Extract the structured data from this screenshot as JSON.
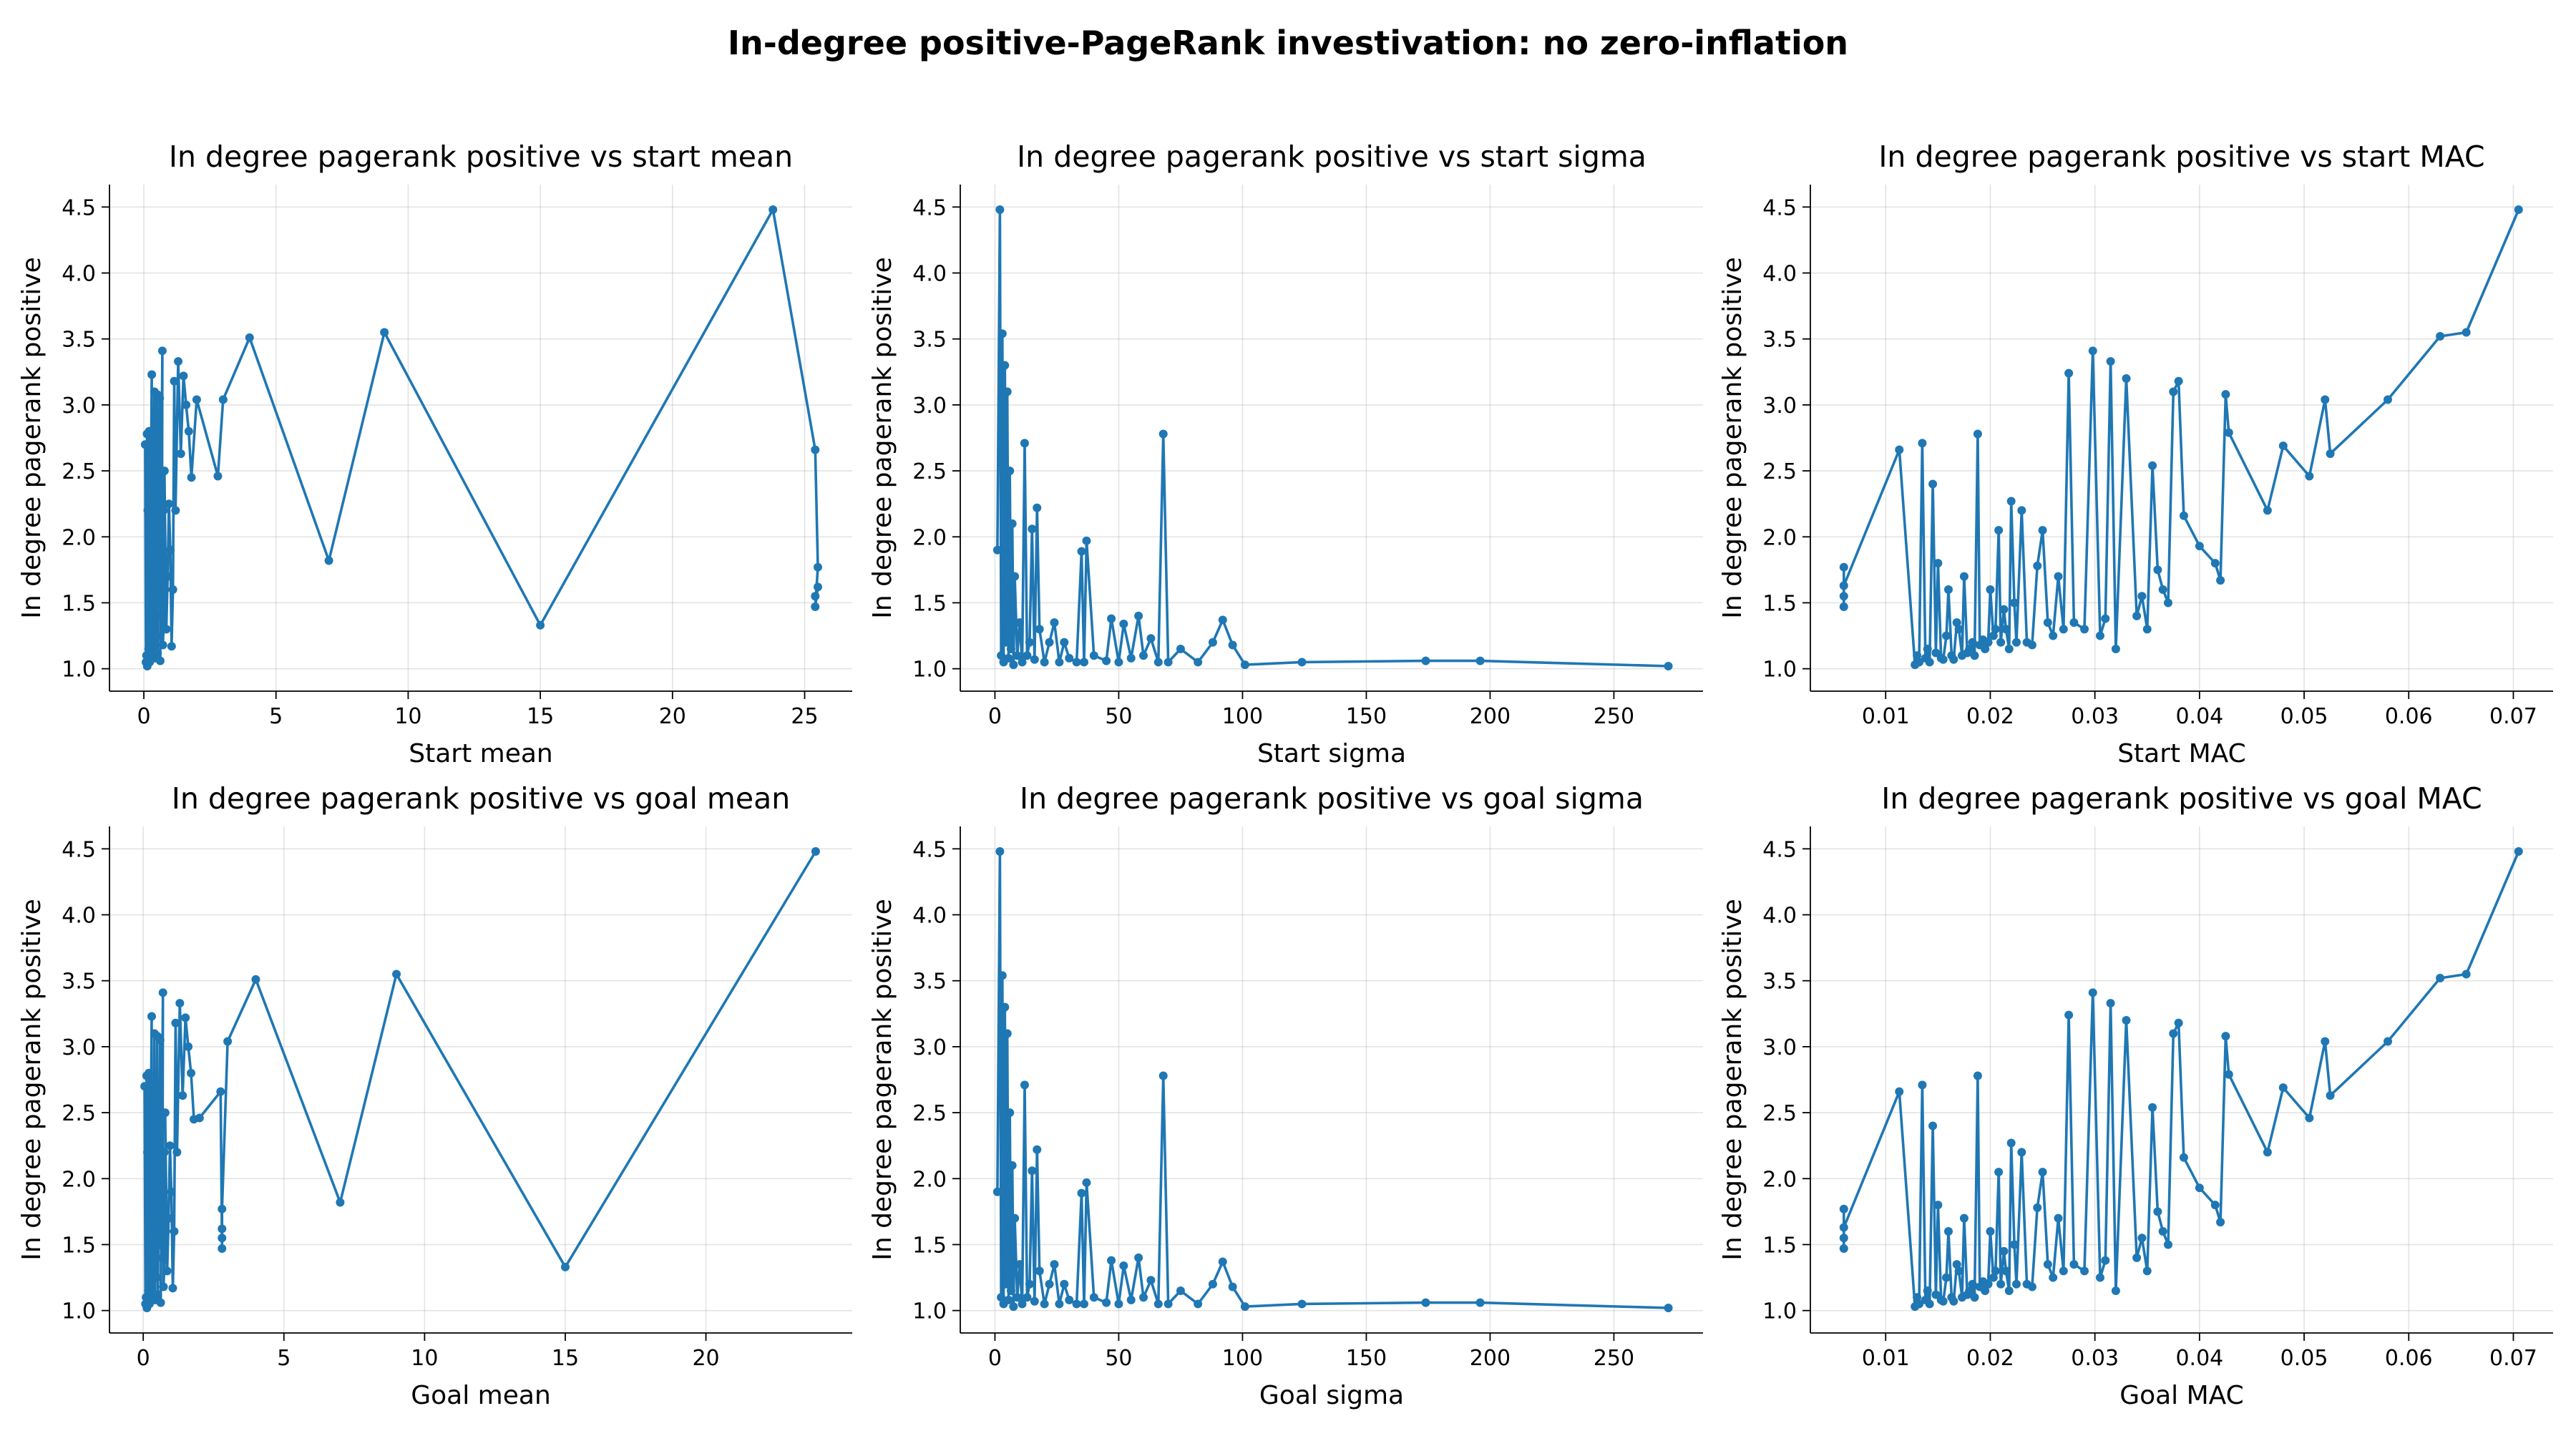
{
  "figure": {
    "suptitle": "In-degree positive-PageRank investivation: no zero-inflation",
    "line_color": "#1f77b4"
  },
  "chart_data": [
    {
      "type": "line",
      "title": "In degree pagerank positive vs start mean",
      "xlabel": "Start mean",
      "ylabel": "In degree pagerank positive",
      "xlim": [
        -1.3,
        26.8
      ],
      "ylim": [
        0.83,
        4.67
      ],
      "xticks": [
        0,
        5,
        10,
        15,
        20,
        25
      ],
      "xtick_labels": [
        "0",
        "5",
        "10",
        "15",
        "20",
        "25"
      ],
      "yticks": [
        1.0,
        1.5,
        2.0,
        2.5,
        3.0,
        3.5,
        4.0,
        4.5
      ],
      "ytick_labels": [
        "1.0",
        "1.5",
        "2.0",
        "2.5",
        "3.0",
        "3.5",
        "4.0",
        "4.5"
      ],
      "grid": true,
      "x": [
        0.05,
        0.08,
        0.12,
        0.1,
        0.15,
        0.13,
        0.2,
        0.18,
        0.25,
        0.22,
        0.3,
        0.28,
        0.35,
        0.33,
        0.4,
        0.38,
        0.45,
        0.42,
        0.5,
        0.48,
        0.55,
        0.52,
        0.6,
        0.58,
        0.65,
        0.62,
        0.7,
        0.68,
        0.75,
        0.72,
        0.8,
        0.78,
        0.85,
        0.9,
        0.95,
        1.0,
        1.05,
        1.1,
        1.15,
        1.2,
        1.3,
        1.4,
        1.5,
        1.6,
        1.7,
        1.8,
        2.0,
        2.8,
        3.0,
        4.0,
        7.0,
        9.1,
        15.0,
        23.8,
        25.4,
        25.5,
        25.4,
        25.5,
        25.4
      ],
      "y": [
        2.7,
        1.05,
        2.78,
        1.1,
        2.2,
        1.02,
        2.8,
        1.15,
        1.9,
        1.05,
        3.23,
        1.2,
        2.6,
        1.1,
        3.1,
        1.3,
        2.1,
        1.08,
        3.08,
        1.25,
        1.95,
        1.12,
        3.05,
        1.5,
        2.0,
        1.06,
        3.41,
        1.4,
        2.2,
        1.18,
        1.6,
        2.5,
        1.3,
        1.7,
        2.25,
        1.9,
        1.17,
        1.6,
        3.18,
        2.2,
        3.33,
        2.63,
        3.22,
        3.0,
        2.8,
        2.45,
        3.04,
        2.46,
        3.04,
        3.51,
        1.82,
        3.55,
        1.33,
        4.48,
        2.66,
        1.77,
        1.47,
        1.62,
        1.55
      ]
    },
    {
      "type": "line",
      "title": "In degree pagerank positive vs start sigma",
      "xlabel": "Start sigma",
      "ylabel": "In degree pagerank positive",
      "xlim": [
        -14,
        286
      ],
      "ylim": [
        0.83,
        4.67
      ],
      "xticks": [
        0,
        50,
        100,
        150,
        200,
        250
      ],
      "xtick_labels": [
        "0",
        "50",
        "100",
        "150",
        "200",
        "250"
      ],
      "yticks": [
        1.0,
        1.5,
        2.0,
        2.5,
        3.0,
        3.5,
        4.0,
        4.5
      ],
      "ytick_labels": [
        "1.0",
        "1.5",
        "2.0",
        "2.5",
        "3.0",
        "3.5",
        "4.0",
        "4.5"
      ],
      "grid": true,
      "x": [
        1,
        2,
        2.5,
        3,
        3.5,
        4,
        4.5,
        5,
        5.5,
        6,
        6.5,
        7,
        7.5,
        8,
        9,
        10,
        11,
        12,
        13,
        14,
        15,
        16,
        17,
        18,
        20,
        22,
        24,
        26,
        28,
        30,
        33,
        35,
        36,
        37,
        40,
        45,
        47,
        50,
        52,
        55,
        58,
        60,
        63,
        66,
        68,
        70,
        75,
        82,
        88,
        92,
        96,
        101,
        124,
        174,
        196,
        272
      ],
      "y": [
        1.9,
        4.48,
        1.1,
        3.54,
        1.05,
        3.3,
        1.2,
        3.1,
        1.08,
        2.5,
        1.15,
        2.1,
        1.03,
        1.7,
        1.1,
        1.35,
        1.05,
        2.71,
        1.1,
        1.2,
        2.06,
        1.07,
        2.22,
        1.3,
        1.05,
        1.2,
        1.35,
        1.05,
        1.2,
        1.08,
        1.05,
        1.89,
        1.05,
        1.97,
        1.1,
        1.06,
        1.38,
        1.05,
        1.34,
        1.08,
        1.4,
        1.1,
        1.23,
        1.05,
        2.78,
        1.05,
        1.15,
        1.05,
        1.2,
        1.37,
        1.18,
        1.03,
        1.05,
        1.06,
        1.06,
        1.02
      ]
    },
    {
      "type": "line",
      "title": "In degree pagerank positive vs start MAC",
      "xlabel": "Start MAC",
      "ylabel": "In degree pagerank positive",
      "xlim": [
        0.0028,
        0.0738
      ],
      "ylim": [
        0.83,
        4.67
      ],
      "xticks": [
        0.01,
        0.02,
        0.03,
        0.04,
        0.05,
        0.06,
        0.07
      ],
      "xtick_labels": [
        "0.01",
        "0.02",
        "0.03",
        "0.04",
        "0.05",
        "0.06",
        "0.07"
      ],
      "yticks": [
        1.0,
        1.5,
        2.0,
        2.5,
        3.0,
        3.5,
        4.0,
        4.5
      ],
      "ytick_labels": [
        "1.0",
        "1.5",
        "2.0",
        "2.5",
        "3.0",
        "3.5",
        "4.0",
        "4.5"
      ],
      "grid": true,
      "x": [
        0.006,
        0.006,
        0.006,
        0.006,
        0.0113,
        0.0128,
        0.013,
        0.0132,
        0.0135,
        0.0138,
        0.014,
        0.0142,
        0.0145,
        0.0148,
        0.015,
        0.0153,
        0.0155,
        0.0158,
        0.016,
        0.0163,
        0.0165,
        0.0168,
        0.017,
        0.0173,
        0.0175,
        0.0178,
        0.018,
        0.0183,
        0.0185,
        0.0188,
        0.019,
        0.0193,
        0.0195,
        0.0198,
        0.02,
        0.0203,
        0.0205,
        0.0208,
        0.021,
        0.0213,
        0.0215,
        0.0218,
        0.022,
        0.0223,
        0.0225,
        0.023,
        0.0235,
        0.024,
        0.0245,
        0.025,
        0.0255,
        0.026,
        0.0265,
        0.027,
        0.0275,
        0.028,
        0.029,
        0.0298,
        0.0305,
        0.031,
        0.0315,
        0.032,
        0.033,
        0.034,
        0.0345,
        0.035,
        0.0355,
        0.036,
        0.0365,
        0.037,
        0.0375,
        0.038,
        0.0385,
        0.04,
        0.0415,
        0.042,
        0.0425,
        0.0428,
        0.0465,
        0.048,
        0.0505,
        0.052,
        0.0525,
        0.058,
        0.063,
        0.0655,
        0.0705
      ],
      "y": [
        1.47,
        1.77,
        1.55,
        1.63,
        2.66,
        1.03,
        1.1,
        1.05,
        2.71,
        1.08,
        1.15,
        1.05,
        2.4,
        1.12,
        1.8,
        1.08,
        1.07,
        1.25,
        1.6,
        1.1,
        1.07,
        1.35,
        1.3,
        1.1,
        1.7,
        1.12,
        1.15,
        1.2,
        1.1,
        2.78,
        1.18,
        1.22,
        1.15,
        1.2,
        1.6,
        1.25,
        1.3,
        2.05,
        1.2,
        1.45,
        1.3,
        1.15,
        2.27,
        1.5,
        1.2,
        2.2,
        1.2,
        1.18,
        1.78,
        2.05,
        1.35,
        1.25,
        1.7,
        1.3,
        3.24,
        1.35,
        1.3,
        3.41,
        1.25,
        1.38,
        3.33,
        1.15,
        3.2,
        1.4,
        1.55,
        1.3,
        2.54,
        1.75,
        1.6,
        1.5,
        3.1,
        3.18,
        2.16,
        1.93,
        1.8,
        1.67,
        3.08,
        2.79,
        2.2,
        2.69,
        2.46,
        3.04,
        2.63,
        3.04,
        3.52,
        3.55,
        4.48
      ]
    },
    {
      "type": "line",
      "title": "In degree pagerank positive vs goal mean",
      "xlabel": "Goal mean",
      "ylabel": "In degree pagerank positive",
      "xlim": [
        -1.2,
        25.2
      ],
      "ylim": [
        0.83,
        4.67
      ],
      "xticks": [
        0,
        5,
        10,
        15,
        20
      ],
      "xtick_labels": [
        "0",
        "5",
        "10",
        "15",
        "20"
      ],
      "yticks": [
        1.0,
        1.5,
        2.0,
        2.5,
        3.0,
        3.5,
        4.0,
        4.5
      ],
      "ytick_labels": [
        "1.0",
        "1.5",
        "2.0",
        "2.5",
        "3.0",
        "3.5",
        "4.0",
        "4.5"
      ],
      "grid": true,
      "x": [
        0.05,
        0.08,
        0.12,
        0.1,
        0.15,
        0.13,
        0.2,
        0.18,
        0.25,
        0.22,
        0.3,
        0.28,
        0.35,
        0.33,
        0.4,
        0.38,
        0.45,
        0.42,
        0.5,
        0.48,
        0.55,
        0.52,
        0.6,
        0.58,
        0.65,
        0.62,
        0.7,
        0.68,
        0.75,
        0.72,
        0.8,
        0.78,
        0.85,
        0.9,
        0.95,
        1.0,
        1.05,
        1.1,
        1.15,
        1.2,
        1.3,
        1.4,
        1.5,
        1.6,
        1.7,
        1.8,
        2.0,
        2.75,
        2.8,
        2.8,
        2.8,
        2.8,
        3.0,
        4.0,
        7.0,
        9.0,
        15.0,
        23.9
      ],
      "y": [
        2.7,
        1.05,
        2.78,
        1.1,
        2.2,
        1.02,
        2.8,
        1.15,
        1.9,
        1.05,
        3.23,
        1.2,
        2.6,
        1.1,
        3.1,
        1.3,
        2.1,
        1.08,
        3.08,
        1.25,
        1.95,
        1.12,
        3.05,
        1.5,
        2.0,
        1.06,
        3.41,
        1.4,
        2.2,
        1.18,
        1.6,
        2.5,
        1.3,
        1.7,
        2.25,
        1.9,
        1.17,
        1.6,
        3.18,
        2.2,
        3.33,
        2.63,
        3.22,
        3.0,
        2.8,
        2.45,
        2.46,
        2.66,
        1.47,
        1.62,
        1.55,
        1.77,
        3.04,
        3.51,
        1.82,
        3.55,
        1.33,
        4.48
      ]
    },
    {
      "type": "line",
      "title": "In degree pagerank positive vs goal sigma",
      "xlabel": "Goal sigma",
      "ylabel": "In degree pagerank positive",
      "xlim": [
        -14,
        286
      ],
      "ylim": [
        0.83,
        4.67
      ],
      "xticks": [
        0,
        50,
        100,
        150,
        200,
        250
      ],
      "xtick_labels": [
        "0",
        "50",
        "100",
        "150",
        "200",
        "250"
      ],
      "yticks": [
        1.0,
        1.5,
        2.0,
        2.5,
        3.0,
        3.5,
        4.0,
        4.5
      ],
      "ytick_labels": [
        "1.0",
        "1.5",
        "2.0",
        "2.5",
        "3.0",
        "3.5",
        "4.0",
        "4.5"
      ],
      "grid": true,
      "x": [
        1,
        2,
        2.5,
        3,
        3.5,
        4,
        4.5,
        5,
        5.5,
        6,
        6.5,
        7,
        7.5,
        8,
        9,
        10,
        11,
        12,
        13,
        14,
        15,
        16,
        17,
        18,
        20,
        22,
        24,
        26,
        28,
        30,
        33,
        35,
        36,
        37,
        40,
        45,
        47,
        50,
        52,
        55,
        58,
        60,
        63,
        66,
        68,
        70,
        75,
        82,
        88,
        92,
        96,
        101,
        124,
        174,
        196,
        272
      ],
      "y": [
        1.9,
        4.48,
        1.1,
        3.54,
        1.05,
        3.3,
        1.2,
        3.1,
        1.08,
        2.5,
        1.15,
        2.1,
        1.03,
        1.7,
        1.1,
        1.35,
        1.05,
        2.71,
        1.1,
        1.2,
        2.06,
        1.07,
        2.22,
        1.3,
        1.05,
        1.2,
        1.35,
        1.05,
        1.2,
        1.08,
        1.05,
        1.89,
        1.05,
        1.97,
        1.1,
        1.06,
        1.38,
        1.05,
        1.34,
        1.08,
        1.4,
        1.1,
        1.23,
        1.05,
        2.78,
        1.05,
        1.15,
        1.05,
        1.2,
        1.37,
        1.18,
        1.03,
        1.05,
        1.06,
        1.06,
        1.02
      ]
    },
    {
      "type": "line",
      "title": "In degree pagerank positive vs goal MAC",
      "xlabel": "Goal MAC",
      "ylabel": "In degree pagerank positive",
      "xlim": [
        0.0028,
        0.0738
      ],
      "ylim": [
        0.83,
        4.67
      ],
      "xticks": [
        0.01,
        0.02,
        0.03,
        0.04,
        0.05,
        0.06,
        0.07
      ],
      "xtick_labels": [
        "0.01",
        "0.02",
        "0.03",
        "0.04",
        "0.05",
        "0.06",
        "0.07"
      ],
      "yticks": [
        1.0,
        1.5,
        2.0,
        2.5,
        3.0,
        3.5,
        4.0,
        4.5
      ],
      "ytick_labels": [
        "1.0",
        "1.5",
        "2.0",
        "2.5",
        "3.0",
        "3.5",
        "4.0",
        "4.5"
      ],
      "grid": true,
      "x": [
        0.006,
        0.006,
        0.006,
        0.006,
        0.0113,
        0.0128,
        0.013,
        0.0132,
        0.0135,
        0.0138,
        0.014,
        0.0142,
        0.0145,
        0.0148,
        0.015,
        0.0153,
        0.0155,
        0.0158,
        0.016,
        0.0163,
        0.0165,
        0.0168,
        0.017,
        0.0173,
        0.0175,
        0.0178,
        0.018,
        0.0183,
        0.0185,
        0.0188,
        0.019,
        0.0193,
        0.0195,
        0.0198,
        0.02,
        0.0203,
        0.0205,
        0.0208,
        0.021,
        0.0213,
        0.0215,
        0.0218,
        0.022,
        0.0223,
        0.0225,
        0.023,
        0.0235,
        0.024,
        0.0245,
        0.025,
        0.0255,
        0.026,
        0.0265,
        0.027,
        0.0275,
        0.028,
        0.029,
        0.0298,
        0.0305,
        0.031,
        0.0315,
        0.032,
        0.033,
        0.034,
        0.0345,
        0.035,
        0.0355,
        0.036,
        0.0365,
        0.037,
        0.0375,
        0.038,
        0.0385,
        0.04,
        0.0415,
        0.042,
        0.0425,
        0.0428,
        0.0465,
        0.048,
        0.0505,
        0.052,
        0.0525,
        0.058,
        0.063,
        0.0655,
        0.0705
      ],
      "y": [
        1.47,
        1.77,
        1.55,
        1.63,
        2.66,
        1.03,
        1.1,
        1.05,
        2.71,
        1.08,
        1.15,
        1.05,
        2.4,
        1.12,
        1.8,
        1.08,
        1.07,
        1.25,
        1.6,
        1.1,
        1.07,
        1.35,
        1.3,
        1.1,
        1.7,
        1.12,
        1.15,
        1.2,
        1.1,
        2.78,
        1.18,
        1.22,
        1.15,
        1.2,
        1.6,
        1.25,
        1.3,
        2.05,
        1.2,
        1.45,
        1.3,
        1.15,
        2.27,
        1.5,
        1.2,
        2.2,
        1.2,
        1.18,
        1.78,
        2.05,
        1.35,
        1.25,
        1.7,
        1.3,
        3.24,
        1.35,
        1.3,
        3.41,
        1.25,
        1.38,
        3.33,
        1.15,
        3.2,
        1.4,
        1.55,
        1.3,
        2.54,
        1.75,
        1.6,
        1.5,
        3.1,
        3.18,
        2.16,
        1.93,
        1.8,
        1.67,
        3.08,
        2.79,
        2.2,
        2.69,
        2.46,
        3.04,
        2.63,
        3.04,
        3.52,
        3.55,
        4.48
      ]
    }
  ]
}
